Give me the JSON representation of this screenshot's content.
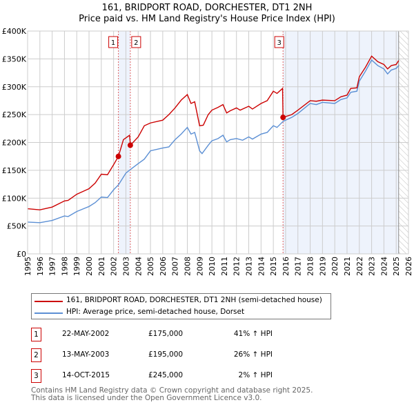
{
  "title": "161, BRIDPORT ROAD, DORCHESTER, DT1 2NH",
  "subtitle": "Price paid vs. HM Land Registry's House Price Index (HPI)",
  "colors": {
    "property": "#cc0000",
    "hpi": "#5b8fd4",
    "shade": "#eef3fc"
  },
  "chart_data": {
    "type": "line",
    "title": "161, BRIDPORT ROAD, DORCHESTER, DT1 2NH — Price paid vs. HM Land Registry's House Price Index (HPI)",
    "xlim": [
      1995,
      2026
    ],
    "ylim": [
      0,
      400000
    ],
    "x_ticks": [
      "1995",
      "1996",
      "1997",
      "1998",
      "1999",
      "2000",
      "2001",
      "2002",
      "2003",
      "2004",
      "2005",
      "2006",
      "2007",
      "2008",
      "2009",
      "2010",
      "2011",
      "2012",
      "2013",
      "2014",
      "2015",
      "2016",
      "2017",
      "2018",
      "2019",
      "2020",
      "2021",
      "2022",
      "2023",
      "2024",
      "2025",
      "2026"
    ],
    "y_ticks": [
      {
        "v": 0,
        "l": "£0"
      },
      {
        "v": 50000,
        "l": "£50K"
      },
      {
        "v": 100000,
        "l": "£100K"
      },
      {
        "v": 150000,
        "l": "£150K"
      },
      {
        "v": 200000,
        "l": "£200K"
      },
      {
        "v": 250000,
        "l": "£250K"
      },
      {
        "v": 300000,
        "l": "£300K"
      },
      {
        "v": 350000,
        "l": "£350K"
      },
      {
        "v": 400000,
        "l": "£400K"
      }
    ],
    "grid": true,
    "series": [
      {
        "name": "161, BRIDPORT ROAD, DORCHESTER, DT1 2NH (semi-detached house)",
        "color": "#cc0000",
        "x": [
          1995,
          1996,
          1997,
          1998,
          1998.3,
          1999,
          2000,
          2000.5,
          2001,
          2001.5,
          2002,
          2002.39,
          2002.8,
          2003.3,
          2003.37,
          2004,
          2004.5,
          2005,
          2006,
          2006.5,
          2007,
          2007.5,
          2008,
          2008.3,
          2008.6,
          2009,
          2009.3,
          2009.7,
          2010,
          2010.5,
          2010.9,
          2011.2,
          2011.5,
          2012,
          2012.3,
          2013,
          2013.3,
          2014,
          2014.5,
          2015,
          2015.3,
          2015.75,
          2015.79,
          2016.5,
          2017,
          2018,
          2018.5,
          2019,
          2020,
          2020.5,
          2021,
          2021.3,
          2021.8,
          2022,
          2022.5,
          2023,
          2023.5,
          2024,
          2024.3,
          2024.6,
          2025,
          2025.2
        ],
        "y": [
          81000,
          79000,
          84000,
          95000,
          96000,
          107000,
          117000,
          127000,
          143000,
          142000,
          160000,
          175000,
          205000,
          213000,
          195000,
          210000,
          230000,
          235000,
          240000,
          250000,
          262000,
          276000,
          286000,
          270000,
          273000,
          230000,
          231000,
          250000,
          258000,
          263000,
          268000,
          253000,
          257000,
          262000,
          258000,
          265000,
          260000,
          270000,
          275000,
          292000,
          288000,
          297000,
          245000,
          250000,
          258000,
          275000,
          274000,
          276000,
          275000,
          282000,
          285000,
          297000,
          298000,
          318000,
          335000,
          355000,
          345000,
          340000,
          332000,
          338000,
          340000,
          347000
        ]
      },
      {
        "name": "HPI: Average price, semi-detached house, Dorset",
        "color": "#5b8fd4",
        "x": [
          1995,
          1996,
          1996.5,
          1997,
          1998,
          1998.3,
          1999,
          2000,
          2000.5,
          2001,
          2001.5,
          2002,
          2002.4,
          2003,
          2003.4,
          2004,
          2004.5,
          2005,
          2006,
          2006.5,
          2007,
          2007.5,
          2008,
          2008.3,
          2008.6,
          2009,
          2009.2,
          2009.7,
          2010,
          2010.5,
          2010.9,
          2011.2,
          2011.5,
          2012,
          2012.5,
          2013,
          2013.3,
          2014,
          2014.5,
          2015,
          2015.3,
          2015.8,
          2016.5,
          2017,
          2018,
          2018.5,
          2019,
          2020,
          2020.5,
          2021,
          2021.3,
          2021.8,
          2022,
          2022.5,
          2023,
          2023.5,
          2024,
          2024.3,
          2024.6,
          2025,
          2025.2
        ],
        "y": [
          57000,
          56000,
          58000,
          60000,
          68000,
          67000,
          76000,
          85000,
          92000,
          102000,
          101000,
          115000,
          124000,
          145000,
          152000,
          162000,
          170000,
          185000,
          190000,
          192000,
          205000,
          215000,
          227000,
          215000,
          218000,
          185000,
          180000,
          195000,
          203000,
          207000,
          213000,
          201000,
          205000,
          207000,
          204000,
          210000,
          206000,
          215000,
          218000,
          230000,
          227000,
          238000,
          245000,
          252000,
          270000,
          268000,
          272000,
          270000,
          277000,
          280000,
          290000,
          292000,
          310000,
          328000,
          348000,
          338000,
          332000,
          323000,
          330000,
          333000,
          338000
        ]
      }
    ],
    "sales": [
      {
        "label": "1",
        "x": 2002.39,
        "y": 175000
      },
      {
        "label": "2",
        "x": 2003.36,
        "y": 195000
      },
      {
        "label": "3",
        "x": 2015.79,
        "y": 245000
      }
    ],
    "shaded_ranges": [
      [
        2002.39,
        2003.36
      ],
      [
        2015.79,
        2025.2
      ]
    ],
    "forecast_hatch_from": 2025.2,
    "legend": "below"
  },
  "legend": {
    "property": "161, BRIDPORT ROAD, DORCHESTER, DT1 2NH (semi-detached house)",
    "hpi": "HPI: Average price, semi-detached house, Dorset"
  },
  "transactions": [
    {
      "num": "1",
      "date": "22-MAY-2002",
      "price": "£175,000",
      "hpi": "41% ↑ HPI"
    },
    {
      "num": "2",
      "date": "13-MAY-2003",
      "price": "£195,000",
      "hpi": "26% ↑ HPI"
    },
    {
      "num": "3",
      "date": "14-OCT-2015",
      "price": "£245,000",
      "hpi": "2% ↑ HPI"
    }
  ],
  "footer": [
    "Contains HM Land Registry data © Crown copyright and database right 2025.",
    "This data is licensed under the Open Government Licence v3.0."
  ]
}
